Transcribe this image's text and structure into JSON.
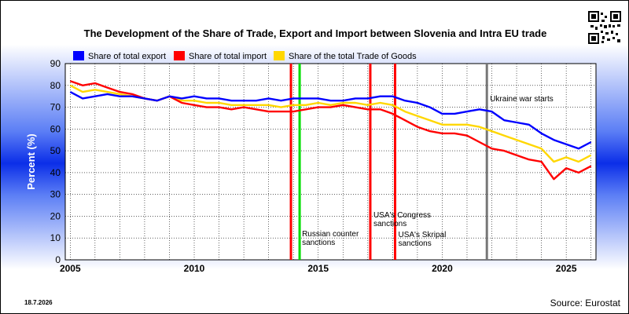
{
  "chart_data": {
    "type": "line",
    "title": "The Development of the Share of Trade, Export and Import between Slovenia and Intra EU trade",
    "ylabel": "Percent (%)",
    "xlabel": "",
    "ylim": [
      0,
      90
    ],
    "xlim": [
      2004.8,
      2026.2
    ],
    "yticks": [
      "0",
      "10",
      "20",
      "30",
      "40",
      "50",
      "60",
      "70",
      "80",
      "90"
    ],
    "xticks": [
      "2005",
      "2010",
      "2015",
      "2020",
      "2025"
    ],
    "grid": true,
    "legend_position": "top-left",
    "x": [
      2005.0,
      2005.5,
      2006.0,
      2006.5,
      2007.0,
      2007.5,
      2008.0,
      2008.5,
      2009.0,
      2009.5,
      2010.0,
      2010.5,
      2011.0,
      2011.5,
      2012.0,
      2012.5,
      2013.0,
      2013.5,
      2014.0,
      2014.5,
      2015.0,
      2015.5,
      2016.0,
      2016.5,
      2017.0,
      2017.5,
      2018.0,
      2018.5,
      2019.0,
      2019.5,
      2020.0,
      2020.5,
      2021.0,
      2021.5,
      2022.0,
      2022.5,
      2023.0,
      2023.5,
      2024.0,
      2024.5,
      2025.0,
      2025.5,
      2026.0
    ],
    "series": [
      {
        "name": "Share of total export",
        "color": "#0000ff",
        "values": [
          77,
          74,
          75,
          76,
          75,
          75,
          74,
          73,
          75,
          74,
          75,
          74,
          74,
          73,
          73,
          73,
          74,
          73,
          74,
          74,
          74,
          73,
          73,
          74,
          74,
          75,
          75,
          73,
          72,
          70,
          67,
          67,
          68,
          69,
          68,
          64,
          63,
          62,
          58,
          55,
          53,
          51,
          54
        ]
      },
      {
        "name": "Share of total import",
        "color": "#ff0000",
        "values": [
          82,
          80,
          81,
          79,
          77,
          76,
          74,
          73,
          75,
          72,
          71,
          70,
          70,
          69,
          70,
          69,
          68,
          68,
          68,
          69,
          70,
          70,
          71,
          70,
          69,
          69,
          67,
          64,
          61,
          59,
          58,
          58,
          57,
          54,
          51,
          50,
          48,
          46,
          45,
          37,
          42,
          40,
          43
        ]
      },
      {
        "name": "Share of the total Trade of Goods",
        "color": "#ffd700",
        "values": [
          80,
          77,
          78,
          77,
          76,
          75,
          74,
          73,
          75,
          73,
          73,
          72,
          72,
          71,
          71,
          71,
          71,
          70,
          71,
          71,
          72,
          71,
          72,
          72,
          71,
          72,
          71,
          68,
          66,
          64,
          62,
          62,
          62,
          61,
          59,
          57,
          55,
          53,
          51,
          45,
          47,
          45,
          48
        ]
      }
    ],
    "annotations": [
      {
        "x": 2013.9,
        "color": "#ff0000",
        "label": ""
      },
      {
        "x": 2014.25,
        "color": "#00dd00",
        "label": "Russian counter sanctions"
      },
      {
        "x": 2017.1,
        "color": "#ff0000",
        "label": "USA's Congress sanctions"
      },
      {
        "x": 2018.1,
        "color": "#ff0000",
        "label": "USA's Skripal sanctions"
      },
      {
        "x": 2021.8,
        "color": "#777777",
        "label": "Ukraine war starts"
      }
    ]
  },
  "date_text": "18.7.2026",
  "source_text": "Source: Eurostat",
  "qr_icon": "qr-code-icon"
}
